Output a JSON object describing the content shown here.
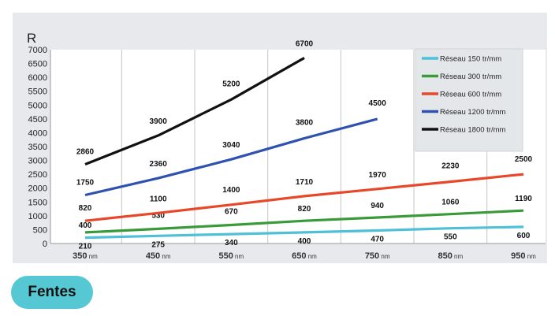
{
  "badge": {
    "label": "Fentes",
    "color": "#56c8d3"
  },
  "chart_data": {
    "type": "line",
    "title": "",
    "ylabel": "R",
    "xlabel": "",
    "x_unit": "nm",
    "x": [
      350,
      450,
      550,
      650,
      750,
      850,
      950
    ],
    "ylim": [
      0,
      7000
    ],
    "yticks": [
      0,
      500,
      1000,
      1500,
      2000,
      2500,
      3000,
      3500,
      4000,
      4500,
      5000,
      5500,
      6000,
      6500,
      7000
    ],
    "grid": "vertical",
    "legend_position": "top-right",
    "series": [
      {
        "name": "Réseau 150 tr/mm",
        "color": "#4fc0d8",
        "points": [
          [
            350,
            210
          ],
          [
            450,
            275
          ],
          [
            550,
            340
          ],
          [
            650,
            400
          ],
          [
            750,
            470
          ],
          [
            850,
            550
          ],
          [
            950,
            600
          ]
        ]
      },
      {
        "name": "Réseau 300 tr/mm",
        "color": "#3a9a3a",
        "points": [
          [
            350,
            400
          ],
          [
            450,
            530
          ],
          [
            550,
            670
          ],
          [
            650,
            820
          ],
          [
            750,
            940
          ],
          [
            850,
            1060
          ],
          [
            950,
            1190
          ]
        ]
      },
      {
        "name": "Réseau 600 tr/mm",
        "color": "#e8482a",
        "points": [
          [
            350,
            820
          ],
          [
            450,
            1100
          ],
          [
            550,
            1400
          ],
          [
            650,
            1710
          ],
          [
            750,
            1970
          ],
          [
            850,
            2230
          ],
          [
            950,
            2500
          ]
        ]
      },
      {
        "name": "Réseau 1200 tr/mm",
        "color": "#2f52b0",
        "points": [
          [
            350,
            1750
          ],
          [
            450,
            2360
          ],
          [
            550,
            3040
          ],
          [
            650,
            3800
          ],
          [
            750,
            4500
          ]
        ]
      },
      {
        "name": "Réseau 1800 tr/mm",
        "color": "#111111",
        "points": [
          [
            350,
            2860
          ],
          [
            450,
            3900
          ],
          [
            550,
            5200
          ],
          [
            650,
            6700
          ]
        ]
      }
    ]
  }
}
